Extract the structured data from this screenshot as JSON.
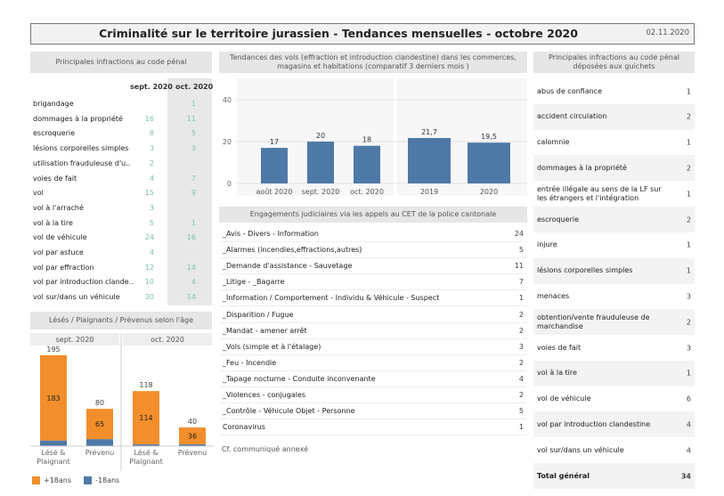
{
  "header": {
    "title": "Criminalité sur le territoire jurassien - Tendances mensuelles - octobre 2020",
    "date": "02.11.2020"
  },
  "left_table": {
    "title": "Principales infractions au code pénal",
    "col1": "sept. 2020",
    "col2": "oct. 2020",
    "rows": [
      {
        "label": "brigandage",
        "sep": "",
        "oct": "1"
      },
      {
        "label": "dommages à la propriété",
        "sep": "16",
        "oct": "11"
      },
      {
        "label": "escroquerie",
        "sep": "8",
        "oct": "5"
      },
      {
        "label": "lésions corporelles simples",
        "sep": "3",
        "oct": "3"
      },
      {
        "label": "utilisation frauduleuse d'u..",
        "sep": "2",
        "oct": ""
      },
      {
        "label": "voies de fait",
        "sep": "4",
        "oct": "7"
      },
      {
        "label": "vol",
        "sep": "15",
        "oct": "9"
      },
      {
        "label": "vol à l'arraché",
        "sep": "3",
        "oct": ""
      },
      {
        "label": "vol à la tire",
        "sep": "5",
        "oct": "1"
      },
      {
        "label": "vol de véhicule",
        "sep": "24",
        "oct": "16"
      },
      {
        "label": "vol par astuce",
        "sep": "4",
        "oct": ""
      },
      {
        "label": "vol par effraction",
        "sep": "12",
        "oct": "14"
      },
      {
        "label": "vol par introduction clande..",
        "sep": "10",
        "oct": "4"
      },
      {
        "label": "vol sur/dans un véhicule",
        "sep": "30",
        "oct": "14"
      }
    ]
  },
  "vols_title": "Tendances des vols (effraction et introduction clandestine) dans les commerces, magasins et habitations (comparatif 3 derniers mois )",
  "engagements": {
    "title": "Engagements judiciaires via les appels au CET de la police cantonale",
    "rows": [
      {
        "label": "_Avis - Divers - Information",
        "value": "24"
      },
      {
        "label": "_Alarmes (incendies,effractions,autres)",
        "value": "5"
      },
      {
        "label": "_Demande d'assistance - Sauvetage",
        "value": "11"
      },
      {
        "label": "_Litige - _Bagarre",
        "value": "7"
      },
      {
        "label": "_Information / Comportement - Individu & Véhicule - Suspect",
        "value": "1"
      },
      {
        "label": "_Disparition / Fugue",
        "value": "2"
      },
      {
        "label": "_Mandat - amener arrêt",
        "value": "2"
      },
      {
        "label": "_Vols (simple et à l'étalage)",
        "value": "3"
      },
      {
        "label": "_Feu - Incendie",
        "value": "2"
      },
      {
        "label": "_Tapage nocturne - Conduite inconvenante",
        "value": "4"
      },
      {
        "label": "_Violences - conjugales",
        "value": "2"
      },
      {
        "label": "_Contrôle - Véhicule Objet - Personne",
        "value": "5"
      },
      {
        "label": "Coronavirus",
        "value": "1"
      }
    ],
    "note": "Cf. communiqué annexé"
  },
  "right_table": {
    "title": "Principales infractions au code pénal déposées aux guichets",
    "rows": [
      {
        "label": "abus de confiance",
        "value": "1"
      },
      {
        "label": "accident circulation",
        "value": "2"
      },
      {
        "label": "calomnie",
        "value": "1"
      },
      {
        "label": "dommages à la propriété",
        "value": "2"
      },
      {
        "label": "entrée illégale au sens de la LF sur les étrangers et l'intégration",
        "value": "1"
      },
      {
        "label": "escroquerie",
        "value": "2"
      },
      {
        "label": "injure",
        "value": "1"
      },
      {
        "label": "lésions corporelles simples",
        "value": "1"
      },
      {
        "label": "menaces",
        "value": "3"
      },
      {
        "label": "obtention/vente frauduleuse de marchandise",
        "value": "2"
      },
      {
        "label": "voies de fait",
        "value": "3"
      },
      {
        "label": "vol à la tire",
        "value": "1"
      },
      {
        "label": "vol de véhicule",
        "value": "6"
      },
      {
        "label": "vol par introduction clandestine",
        "value": "4"
      },
      {
        "label": "vol sur/dans un véhicule",
        "value": "4"
      },
      {
        "label": "Total général",
        "value": "34"
      }
    ]
  },
  "age_title": "Lésés / Plaignants / Prévenus selon l'âge",
  "colors": {
    "bar_blue": "#4e79a7",
    "bar_orange": "#f28e2b",
    "accent_teal": "#7fbfb0"
  },
  "chart_data": [
    {
      "type": "bar",
      "categories": [
        "août 2020",
        "sept. 2020",
        "oct. 2020"
      ],
      "values": [
        17,
        20,
        18
      ],
      "ylim": [
        0,
        40
      ],
      "yticks": [
        0,
        20,
        40
      ]
    },
    {
      "type": "bar",
      "categories": [
        "2019",
        "2020"
      ],
      "values": [
        21.7,
        19.5
      ],
      "value_labels": [
        "21,7",
        "19,5"
      ],
      "ylim": [
        0,
        40
      ]
    },
    {
      "type": "bar",
      "stacked": true,
      "panels": [
        "sept. 2020",
        "oct. 2020"
      ],
      "categories": [
        "Lésé & Plaignant",
        "Prévenu"
      ],
      "series": [
        {
          "name": "+18ans",
          "values": {
            "sept. 2020": [
              183,
              65
            ],
            "oct. 2020": [
              114,
              36
            ]
          }
        },
        {
          "name": "-18ans",
          "values": {
            "sept. 2020": [
              12,
              15
            ],
            "oct. 2020": [
              4,
              4
            ]
          }
        }
      ],
      "totals": {
        "sept. 2020": [
          195,
          80
        ],
        "oct. 2020": [
          118,
          40
        ]
      },
      "legend": "bottom-left"
    }
  ]
}
